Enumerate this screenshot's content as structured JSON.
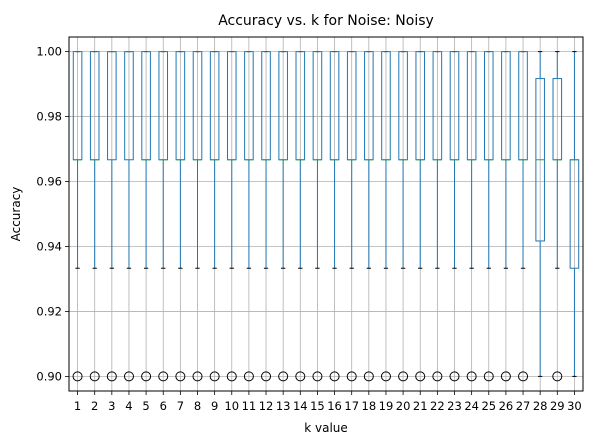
{
  "chart_data": {
    "type": "box",
    "title": "Accuracy vs. k for Noise: Noisy",
    "xlabel": "k value",
    "ylabel": "Accuracy",
    "ylim": [
      0.8955,
      1.0045
    ],
    "yticks": [
      "0.90",
      "0.92",
      "0.94",
      "0.96",
      "0.98",
      "1.00"
    ],
    "grid": true,
    "colors": {
      "box": "#1f77b4",
      "median": "#2ca02c",
      "whisker_cap": "#000000",
      "grid": "#b0b0b0"
    },
    "categories": [
      "1",
      "2",
      "3",
      "4",
      "5",
      "6",
      "7",
      "8",
      "9",
      "10",
      "11",
      "12",
      "13",
      "14",
      "15",
      "16",
      "17",
      "18",
      "19",
      "20",
      "21",
      "22",
      "23",
      "24",
      "25",
      "26",
      "27",
      "28",
      "29",
      "30"
    ],
    "boxes": [
      {
        "k": "1",
        "q1": 0.9667,
        "median": 0.9667,
        "q3": 1.0,
        "whisker_low": 0.9333,
        "whisker_high": 1.0,
        "outliers": [
          0.9
        ]
      },
      {
        "k": "2",
        "q1": 0.9667,
        "median": 0.9667,
        "q3": 1.0,
        "whisker_low": 0.9333,
        "whisker_high": 1.0,
        "outliers": [
          0.9
        ]
      },
      {
        "k": "3",
        "q1": 0.9667,
        "median": 1.0,
        "q3": 1.0,
        "whisker_low": 0.9333,
        "whisker_high": 1.0,
        "outliers": [
          0.9
        ]
      },
      {
        "k": "4",
        "q1": 0.9667,
        "median": 1.0,
        "q3": 1.0,
        "whisker_low": 0.9333,
        "whisker_high": 1.0,
        "outliers": [
          0.9
        ]
      },
      {
        "k": "5",
        "q1": 0.9667,
        "median": 0.9667,
        "q3": 1.0,
        "whisker_low": 0.9333,
        "whisker_high": 1.0,
        "outliers": [
          0.9
        ]
      },
      {
        "k": "6",
        "q1": 0.9667,
        "median": 0.9667,
        "q3": 1.0,
        "whisker_low": 0.9333,
        "whisker_high": 1.0,
        "outliers": [
          0.9
        ]
      },
      {
        "k": "7",
        "q1": 0.9667,
        "median": 0.9667,
        "q3": 1.0,
        "whisker_low": 0.9333,
        "whisker_high": 1.0,
        "outliers": [
          0.9
        ]
      },
      {
        "k": "8",
        "q1": 0.9667,
        "median": 0.9667,
        "q3": 1.0,
        "whisker_low": 0.9333,
        "whisker_high": 1.0,
        "outliers": [
          0.9
        ]
      },
      {
        "k": "9",
        "q1": 0.9667,
        "median": 0.9667,
        "q3": 1.0,
        "whisker_low": 0.9333,
        "whisker_high": 1.0,
        "outliers": [
          0.9
        ]
      },
      {
        "k": "10",
        "q1": 0.9667,
        "median": 0.9667,
        "q3": 1.0,
        "whisker_low": 0.9333,
        "whisker_high": 1.0,
        "outliers": [
          0.9
        ]
      },
      {
        "k": "11",
        "q1": 0.9667,
        "median": 0.9667,
        "q3": 1.0,
        "whisker_low": 0.9333,
        "whisker_high": 1.0,
        "outliers": [
          0.9
        ]
      },
      {
        "k": "12",
        "q1": 0.9667,
        "median": 0.9667,
        "q3": 1.0,
        "whisker_low": 0.9333,
        "whisker_high": 1.0,
        "outliers": [
          0.9
        ]
      },
      {
        "k": "13",
        "q1": 0.9667,
        "median": 0.9667,
        "q3": 1.0,
        "whisker_low": 0.9333,
        "whisker_high": 1.0,
        "outliers": [
          0.9
        ]
      },
      {
        "k": "14",
        "q1": 0.9667,
        "median": 0.9667,
        "q3": 1.0,
        "whisker_low": 0.9333,
        "whisker_high": 1.0,
        "outliers": [
          0.9
        ]
      },
      {
        "k": "15",
        "q1": 0.9667,
        "median": 0.9667,
        "q3": 1.0,
        "whisker_low": 0.9333,
        "whisker_high": 1.0,
        "outliers": [
          0.9
        ]
      },
      {
        "k": "16",
        "q1": 0.9667,
        "median": 0.9667,
        "q3": 1.0,
        "whisker_low": 0.9333,
        "whisker_high": 1.0,
        "outliers": [
          0.9
        ]
      },
      {
        "k": "17",
        "q1": 0.9667,
        "median": 0.9667,
        "q3": 1.0,
        "whisker_low": 0.9333,
        "whisker_high": 1.0,
        "outliers": [
          0.9
        ]
      },
      {
        "k": "18",
        "q1": 0.9667,
        "median": 0.9667,
        "q3": 1.0,
        "whisker_low": 0.9333,
        "whisker_high": 1.0,
        "outliers": [
          0.9
        ]
      },
      {
        "k": "19",
        "q1": 0.9667,
        "median": 0.9667,
        "q3": 1.0,
        "whisker_low": 0.9333,
        "whisker_high": 1.0,
        "outliers": [
          0.9
        ]
      },
      {
        "k": "20",
        "q1": 0.9667,
        "median": 0.9667,
        "q3": 1.0,
        "whisker_low": 0.9333,
        "whisker_high": 1.0,
        "outliers": [
          0.9
        ]
      },
      {
        "k": "21",
        "q1": 0.9667,
        "median": 0.9667,
        "q3": 1.0,
        "whisker_low": 0.9333,
        "whisker_high": 1.0,
        "outliers": [
          0.9
        ]
      },
      {
        "k": "22",
        "q1": 0.9667,
        "median": 0.9667,
        "q3": 1.0,
        "whisker_low": 0.9333,
        "whisker_high": 1.0,
        "outliers": [
          0.9
        ]
      },
      {
        "k": "23",
        "q1": 0.9667,
        "median": 0.9667,
        "q3": 1.0,
        "whisker_low": 0.9333,
        "whisker_high": 1.0,
        "outliers": [
          0.9
        ]
      },
      {
        "k": "24",
        "q1": 0.9667,
        "median": 0.9667,
        "q3": 1.0,
        "whisker_low": 0.9333,
        "whisker_high": 1.0,
        "outliers": [
          0.9
        ]
      },
      {
        "k": "25",
        "q1": 0.9667,
        "median": 0.9667,
        "q3": 1.0,
        "whisker_low": 0.9333,
        "whisker_high": 1.0,
        "outliers": [
          0.9
        ]
      },
      {
        "k": "26",
        "q1": 0.9667,
        "median": 0.9667,
        "q3": 1.0,
        "whisker_low": 0.9333,
        "whisker_high": 1.0,
        "outliers": [
          0.9
        ]
      },
      {
        "k": "27",
        "q1": 0.9667,
        "median": 0.9667,
        "q3": 1.0,
        "whisker_low": 0.9333,
        "whisker_high": 1.0,
        "outliers": [
          0.9
        ]
      },
      {
        "k": "28",
        "q1": 0.9417,
        "median": 0.9667,
        "q3": 0.9917,
        "whisker_low": 0.9,
        "whisker_high": 1.0,
        "outliers": []
      },
      {
        "k": "29",
        "q1": 0.9667,
        "median": 0.9667,
        "q3": 0.9917,
        "whisker_low": 0.9333,
        "whisker_high": 1.0,
        "outliers": [
          0.9
        ]
      },
      {
        "k": "30",
        "q1": 0.9333,
        "median": 0.9667,
        "q3": 0.9667,
        "whisker_low": 0.9,
        "whisker_high": 1.0,
        "outliers": []
      }
    ]
  }
}
